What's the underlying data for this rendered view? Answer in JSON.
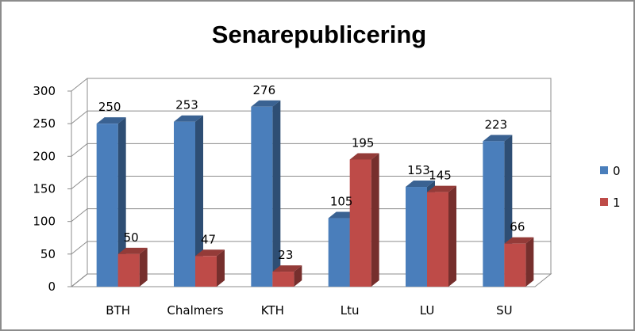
{
  "chart_data": {
    "type": "bar",
    "title": "Senarepublicering",
    "categories": [
      "BTH",
      "Chalmers",
      "KTH",
      "Ltu",
      "LU",
      "SU"
    ],
    "series": [
      {
        "name": "0",
        "values": [
          250,
          253,
          276,
          105,
          153,
          223
        ],
        "color": "#4a7ebb"
      },
      {
        "name": "1",
        "values": [
          50,
          47,
          23,
          195,
          145,
          66
        ],
        "color": "#be4b48"
      }
    ],
    "ylim": [
      0,
      300
    ],
    "yticks": [
      0,
      50,
      100,
      150,
      200,
      250,
      300
    ],
    "grid": true,
    "legend": "right",
    "style": "3d-clustered-column"
  }
}
